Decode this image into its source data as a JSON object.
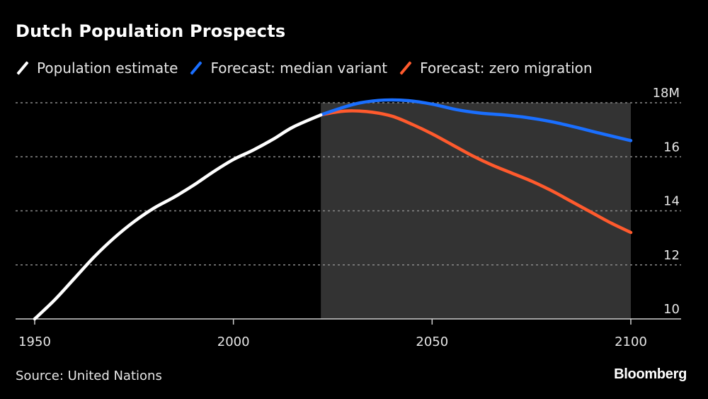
{
  "header": {
    "title": "Dutch Population Prospects"
  },
  "legend": [
    {
      "label": "Population estimate",
      "color": "#ffffff"
    },
    {
      "label": "Forecast: median variant",
      "color": "#1a6fff"
    },
    {
      "label": "Forecast: zero migration",
      "color": "#ff5a2d"
    }
  ],
  "footer": {
    "source": "Source: United Nations",
    "brand": "Bloomberg"
  },
  "chart_data": {
    "type": "line",
    "title": "Dutch Population Prospects",
    "xlabel": "",
    "ylabel": "",
    "xlim": [
      1950,
      2100
    ],
    "ylim": [
      10,
      18
    ],
    "x_ticks": [
      {
        "value": 1950,
        "label": "1950"
      },
      {
        "value": 2000,
        "label": "2000"
      },
      {
        "value": 2050,
        "label": "2050"
      },
      {
        "value": 2100,
        "label": "2100"
      }
    ],
    "y_ticks": [
      {
        "value": 18,
        "label": "18M"
      },
      {
        "value": 16,
        "label": "16"
      },
      {
        "value": 14,
        "label": "14"
      },
      {
        "value": 12,
        "label": "12"
      },
      {
        "value": 10,
        "label": "10"
      }
    ],
    "y_axis_side": "right",
    "grid": "horizontal-dotted",
    "legend_position": "top-left",
    "shaded_region": {
      "x_start": 2022,
      "x_end": 2100,
      "color": "#333333"
    },
    "series": [
      {
        "name": "Population estimate",
        "color": "#ffffff",
        "points": [
          [
            1950,
            10.0
          ],
          [
            1955,
            10.7
          ],
          [
            1960,
            11.5
          ],
          [
            1965,
            12.3
          ],
          [
            1970,
            13.0
          ],
          [
            1975,
            13.6
          ],
          [
            1980,
            14.1
          ],
          [
            1985,
            14.5
          ],
          [
            1990,
            14.95
          ],
          [
            1995,
            15.45
          ],
          [
            2000,
            15.9
          ],
          [
            2005,
            16.25
          ],
          [
            2010,
            16.65
          ],
          [
            2015,
            17.1
          ],
          [
            2022,
            17.55
          ]
        ]
      },
      {
        "name": "Forecast: median variant",
        "color": "#1a6fff",
        "points": [
          [
            2022,
            17.55
          ],
          [
            2027,
            17.8
          ],
          [
            2032,
            18.0
          ],
          [
            2038,
            18.1
          ],
          [
            2044,
            18.08
          ],
          [
            2050,
            17.95
          ],
          [
            2056,
            17.75
          ],
          [
            2062,
            17.62
          ],
          [
            2068,
            17.55
          ],
          [
            2074,
            17.45
          ],
          [
            2080,
            17.3
          ],
          [
            2086,
            17.1
          ],
          [
            2092,
            16.88
          ],
          [
            2100,
            16.6
          ]
        ]
      },
      {
        "name": "Forecast: zero migration",
        "color": "#ff5a2d",
        "points": [
          [
            2022,
            17.55
          ],
          [
            2026,
            17.66
          ],
          [
            2030,
            17.7
          ],
          [
            2035,
            17.65
          ],
          [
            2040,
            17.5
          ],
          [
            2045,
            17.2
          ],
          [
            2050,
            16.85
          ],
          [
            2055,
            16.45
          ],
          [
            2060,
            16.05
          ],
          [
            2065,
            15.7
          ],
          [
            2070,
            15.4
          ],
          [
            2075,
            15.1
          ],
          [
            2080,
            14.75
          ],
          [
            2085,
            14.35
          ],
          [
            2090,
            13.95
          ],
          [
            2095,
            13.55
          ],
          [
            2100,
            13.2
          ]
        ]
      }
    ]
  }
}
